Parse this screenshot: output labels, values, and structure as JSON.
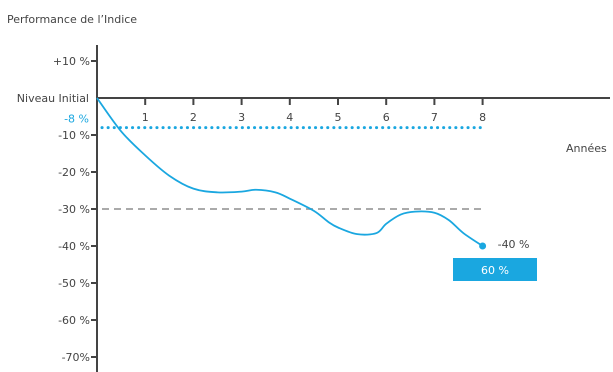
{
  "chart_data": {
    "type": "line",
    "title": "Performance de l’Indice",
    "xlabel": "Années",
    "ylabel": "",
    "xlim": [
      0,
      8
    ],
    "ylim": [
      -70,
      10
    ],
    "x_ticks": [
      {
        "value": 1,
        "label": "1"
      },
      {
        "value": 2,
        "label": "2"
      },
      {
        "value": 3,
        "label": "3"
      },
      {
        "value": 4,
        "label": "4"
      },
      {
        "value": 5,
        "label": "5"
      },
      {
        "value": 6,
        "label": "6"
      },
      {
        "value": 7,
        "label": "7"
      },
      {
        "value": 8,
        "label": "8"
      }
    ],
    "y_ticks": [
      {
        "value": 10,
        "label": "+10 %"
      },
      {
        "value": 0,
        "label": "Niveau Initial"
      },
      {
        "value": -10,
        "label": "-10 %"
      },
      {
        "value": -20,
        "label": "-20 %"
      },
      {
        "value": -30,
        "label": "-30 %"
      },
      {
        "value": -40,
        "label": "-40 %"
      },
      {
        "value": -50,
        "label": "-50 %"
      },
      {
        "value": -60,
        "label": "-60 %"
      },
      {
        "value": -70,
        "label": "-70%"
      }
    ],
    "series": [
      {
        "color": "#1aa7e0",
        "points": [
          [
            0,
            0
          ],
          [
            0.5,
            -9
          ],
          [
            1,
            -15.5
          ],
          [
            1.5,
            -21
          ],
          [
            2,
            -24.5
          ],
          [
            2.5,
            -25.5
          ],
          [
            3,
            -25.3
          ],
          [
            3.3,
            -24.8
          ],
          [
            3.7,
            -25.5
          ],
          [
            4,
            -27.2
          ],
          [
            4.5,
            -30.5
          ],
          [
            4.8,
            -33.5
          ],
          [
            5,
            -35
          ],
          [
            5.4,
            -36.8
          ],
          [
            5.8,
            -36.5
          ],
          [
            6,
            -34
          ],
          [
            6.3,
            -31.5
          ],
          [
            6.6,
            -30.7
          ],
          [
            7,
            -31
          ],
          [
            7.3,
            -33
          ],
          [
            7.6,
            -36.5
          ],
          [
            8,
            -40
          ]
        ],
        "end_label": "-40 %"
      }
    ],
    "reference_lines": [
      {
        "value": -8,
        "label": "-8 %",
        "color": "#1aa7e0",
        "style": "dotted"
      },
      {
        "value": -30,
        "label": "",
        "color": "#aaaaaa",
        "style": "dashed"
      }
    ],
    "badge": {
      "text": "60 %",
      "color": "#1aa7e0"
    },
    "grid": false
  }
}
